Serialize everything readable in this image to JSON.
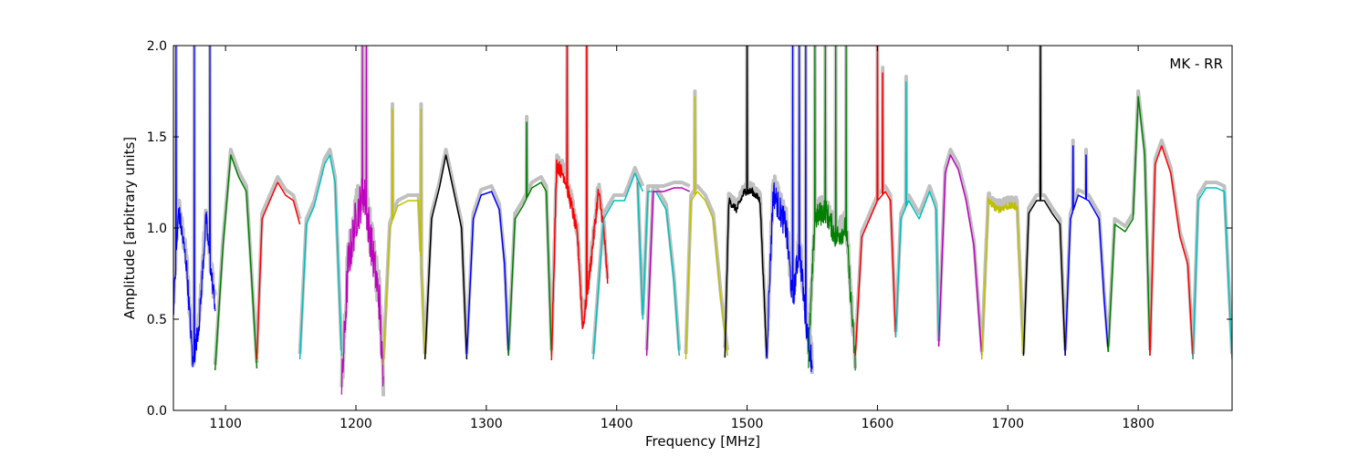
{
  "chart_data": {
    "type": "line",
    "title": "",
    "annotation": "MK - RR",
    "xlabel": "Frequency [MHz]",
    "ylabel": "Amplitude [arbitrary units]",
    "xlim": [
      1060,
      1872
    ],
    "ylim": [
      0.0,
      2.0
    ],
    "xticks": [
      1100,
      1200,
      1300,
      1400,
      1500,
      1600,
      1700,
      1800
    ],
    "yticks": [
      0.0,
      0.5,
      1.0,
      1.5,
      2.0
    ],
    "xtick_labels": [
      "1100",
      "1200",
      "1300",
      "1400",
      "1500",
      "1600",
      "1700",
      "1800"
    ],
    "ytick_labels": [
      "0.0",
      "0.5",
      "1.0",
      "1.5",
      "2.0"
    ],
    "grid": false,
    "background_color": "#c0c0c0",
    "subbands": [
      {
        "start": 1060,
        "end": 1092,
        "color": "#0000ff",
        "noise": 0.06,
        "spikes": [
          [
            1062,
            2.0
          ],
          [
            1076,
            2.0
          ],
          [
            1088,
            2.0
          ]
        ],
        "points": [
          [
            1060,
            0.55
          ],
          [
            1064,
            1.1
          ],
          [
            1070,
            0.8
          ],
          [
            1075,
            0.25
          ],
          [
            1080,
            0.5
          ],
          [
            1085,
            1.05
          ],
          [
            1089,
            0.75
          ],
          [
            1092,
            0.58
          ]
        ]
      },
      {
        "start": 1092,
        "end": 1124,
        "color": "#008000",
        "points": [
          [
            1092,
            0.22
          ],
          [
            1098,
            0.9
          ],
          [
            1104,
            1.4
          ],
          [
            1110,
            1.28
          ],
          [
            1116,
            1.2
          ],
          [
            1121,
            0.6
          ],
          [
            1124,
            0.23
          ]
        ]
      },
      {
        "start": 1124,
        "end": 1157,
        "color": "#ff0000",
        "points": [
          [
            1124,
            0.28
          ],
          [
            1128,
            1.05
          ],
          [
            1134,
            1.15
          ],
          [
            1140,
            1.25
          ],
          [
            1146,
            1.18
          ],
          [
            1152,
            1.15
          ],
          [
            1157,
            1.02
          ]
        ]
      },
      {
        "start": 1157,
        "end": 1189,
        "color": "#00bfbf",
        "points": [
          [
            1157,
            0.28
          ],
          [
            1162,
            1.02
          ],
          [
            1168,
            1.12
          ],
          [
            1176,
            1.35
          ],
          [
            1180,
            1.4
          ],
          [
            1184,
            1.25
          ],
          [
            1189,
            0.3
          ]
        ]
      },
      {
        "start": 1189,
        "end": 1221,
        "color": "#bf00bf",
        "noise": 0.12,
        "spikes": [
          [
            1205,
            2.0
          ],
          [
            1208,
            2.0
          ]
        ],
        "points": [
          [
            1189,
            0.1
          ],
          [
            1194,
            0.8
          ],
          [
            1200,
            1.05
          ],
          [
            1206,
            1.2
          ],
          [
            1212,
            0.9
          ],
          [
            1218,
            0.6
          ],
          [
            1221,
            0.12
          ]
        ]
      },
      {
        "start": 1221,
        "end": 1253,
        "color": "#bfbf00",
        "spikes": [
          [
            1228,
            1.65
          ],
          [
            1250,
            1.65
          ]
        ],
        "points": [
          [
            1221,
            0.25
          ],
          [
            1226,
            1.0
          ],
          [
            1232,
            1.12
          ],
          [
            1240,
            1.15
          ],
          [
            1248,
            1.15
          ],
          [
            1253,
            0.28
          ]
        ]
      },
      {
        "start": 1253,
        "end": 1285,
        "color": "#000000",
        "points": [
          [
            1253,
            0.28
          ],
          [
            1258,
            1.05
          ],
          [
            1264,
            1.22
          ],
          [
            1269,
            1.4
          ],
          [
            1275,
            1.2
          ],
          [
            1281,
            1.0
          ],
          [
            1285,
            0.28
          ]
        ]
      },
      {
        "start": 1285,
        "end": 1317,
        "color": "#0000ff",
        "points": [
          [
            1285,
            0.3
          ],
          [
            1290,
            1.05
          ],
          [
            1296,
            1.18
          ],
          [
            1304,
            1.2
          ],
          [
            1310,
            1.1
          ],
          [
            1314,
            0.8
          ],
          [
            1317,
            0.3
          ]
        ]
      },
      {
        "start": 1317,
        "end": 1350,
        "color": "#008000",
        "spikes": [
          [
            1331,
            1.58
          ]
        ],
        "points": [
          [
            1317,
            0.3
          ],
          [
            1322,
            1.05
          ],
          [
            1328,
            1.12
          ],
          [
            1335,
            1.22
          ],
          [
            1342,
            1.25
          ],
          [
            1346,
            1.2
          ],
          [
            1350,
            0.3
          ]
        ]
      },
      {
        "start": 1350,
        "end": 1393,
        "color": "#ff0000",
        "noise": 0.04,
        "spikes": [
          [
            1362,
            2.0
          ],
          [
            1377,
            2.0
          ]
        ],
        "points": [
          [
            1350,
            0.3
          ],
          [
            1354,
            1.35
          ],
          [
            1360,
            1.28
          ],
          [
            1366,
            1.1
          ],
          [
            1370,
            0.95
          ],
          [
            1374,
            0.45
          ],
          [
            1380,
            0.8
          ],
          [
            1386,
            1.2
          ],
          [
            1390,
            1.0
          ],
          [
            1393,
            0.7
          ]
        ]
      },
      {
        "start": 1382,
        "end": 1420,
        "color": "#00bfbf",
        "points": [
          [
            1382,
            0.28
          ],
          [
            1390,
            1.05
          ],
          [
            1398,
            1.15
          ],
          [
            1406,
            1.15
          ],
          [
            1414,
            1.3
          ],
          [
            1420,
            1.2
          ]
        ]
      },
      {
        "start": 1416,
        "end": 1448,
        "color": "#00bfbf",
        "points": [
          [
            1416,
            1.25
          ],
          [
            1420,
            0.5
          ],
          [
            1424,
            1.2
          ],
          [
            1430,
            1.2
          ],
          [
            1438,
            1.1
          ],
          [
            1444,
            0.7
          ],
          [
            1448,
            0.3
          ]
        ]
      },
      {
        "start": 1423,
        "end": 1456,
        "color": "#bf00bf",
        "points": [
          [
            1423,
            0.3
          ],
          [
            1428,
            1.2
          ],
          [
            1436,
            1.2
          ],
          [
            1444,
            1.22
          ],
          [
            1450,
            1.22
          ],
          [
            1456,
            1.2
          ]
        ]
      },
      {
        "start": 1453,
        "end": 1485,
        "color": "#bfbf00",
        "spikes": [
          [
            1460,
            1.72
          ]
        ],
        "points": [
          [
            1453,
            0.28
          ],
          [
            1457,
            1.15
          ],
          [
            1462,
            1.2
          ],
          [
            1468,
            1.15
          ],
          [
            1474,
            1.05
          ],
          [
            1480,
            0.6
          ],
          [
            1485,
            0.3
          ]
        ]
      },
      {
        "start": 1483,
        "end": 1515,
        "color": "#000000",
        "noise": 0.02,
        "spikes": [
          [
            1500,
            2.0
          ]
        ],
        "points": [
          [
            1483,
            0.3
          ],
          [
            1486,
            1.15
          ],
          [
            1492,
            1.1
          ],
          [
            1498,
            1.2
          ],
          [
            1504,
            1.2
          ],
          [
            1510,
            1.15
          ],
          [
            1515,
            0.3
          ]
        ]
      },
      {
        "start": 1515,
        "end": 1550,
        "color": "#0000ff",
        "noise": 0.08,
        "spikes": [
          [
            1535,
            2.0
          ],
          [
            1540,
            2.0
          ],
          [
            1545,
            2.0
          ]
        ],
        "points": [
          [
            1515,
            0.3
          ],
          [
            1520,
            1.2
          ],
          [
            1525,
            1.1
          ],
          [
            1530,
            1.0
          ],
          [
            1535,
            0.6
          ],
          [
            1540,
            0.9
          ],
          [
            1545,
            0.5
          ],
          [
            1550,
            0.25
          ]
        ]
      },
      {
        "start": 1547,
        "end": 1583,
        "color": "#008000",
        "noise": 0.07,
        "spikes": [
          [
            1552,
            2.0
          ],
          [
            1560,
            2.0
          ],
          [
            1568,
            2.0
          ],
          [
            1576,
            2.0
          ]
        ],
        "points": [
          [
            1547,
            0.28
          ],
          [
            1552,
            1.05
          ],
          [
            1560,
            1.1
          ],
          [
            1568,
            0.95
          ],
          [
            1576,
            1.0
          ],
          [
            1583,
            0.25
          ]
        ]
      },
      {
        "start": 1583,
        "end": 1614,
        "color": "#ff0000",
        "spikes": [
          [
            1600,
            2.0
          ],
          [
            1604,
            1.85
          ]
        ],
        "points": [
          [
            1583,
            0.3
          ],
          [
            1588,
            0.95
          ],
          [
            1594,
            1.05
          ],
          [
            1600,
            1.15
          ],
          [
            1606,
            1.2
          ],
          [
            1610,
            1.15
          ],
          [
            1614,
            0.4
          ]
        ]
      },
      {
        "start": 1614,
        "end": 1647,
        "color": "#00bfbf",
        "spikes": [
          [
            1622,
            1.8
          ]
        ],
        "points": [
          [
            1614,
            0.4
          ],
          [
            1618,
            1.05
          ],
          [
            1624,
            1.15
          ],
          [
            1632,
            1.05
          ],
          [
            1640,
            1.2
          ],
          [
            1645,
            1.1
          ],
          [
            1647,
            0.35
          ]
        ]
      },
      {
        "start": 1647,
        "end": 1680,
        "color": "#bf00bf",
        "points": [
          [
            1647,
            0.35
          ],
          [
            1652,
            1.3
          ],
          [
            1656,
            1.4
          ],
          [
            1662,
            1.32
          ],
          [
            1668,
            1.15
          ],
          [
            1674,
            0.9
          ],
          [
            1680,
            0.3
          ]
        ]
      },
      {
        "start": 1680,
        "end": 1712,
        "color": "#bfbf00",
        "noise": 0.02,
        "points": [
          [
            1680,
            0.28
          ],
          [
            1685,
            1.15
          ],
          [
            1692,
            1.1
          ],
          [
            1700,
            1.12
          ],
          [
            1707,
            1.12
          ],
          [
            1712,
            0.3
          ]
        ]
      },
      {
        "start": 1712,
        "end": 1744,
        "color": "#000000",
        "spikes": [
          [
            1725,
            2.0
          ]
        ],
        "points": [
          [
            1712,
            0.3
          ],
          [
            1716,
            1.08
          ],
          [
            1722,
            1.15
          ],
          [
            1728,
            1.15
          ],
          [
            1734,
            1.08
          ],
          [
            1740,
            1.02
          ],
          [
            1744,
            0.3
          ]
        ]
      },
      {
        "start": 1744,
        "end": 1777,
        "color": "#0000ff",
        "spikes": [
          [
            1750,
            1.45
          ],
          [
            1760,
            1.4
          ]
        ],
        "points": [
          [
            1744,
            0.3
          ],
          [
            1748,
            1.05
          ],
          [
            1754,
            1.18
          ],
          [
            1762,
            1.15
          ],
          [
            1770,
            1.05
          ],
          [
            1774,
            0.6
          ],
          [
            1777,
            0.32
          ]
        ]
      },
      {
        "start": 1777,
        "end": 1809,
        "color": "#008000",
        "points": [
          [
            1777,
            0.32
          ],
          [
            1782,
            1.02
          ],
          [
            1790,
            0.98
          ],
          [
            1796,
            1.05
          ],
          [
            1800,
            1.72
          ],
          [
            1805,
            1.4
          ],
          [
            1809,
            0.3
          ]
        ]
      },
      {
        "start": 1809,
        "end": 1842,
        "color": "#ff0000",
        "points": [
          [
            1809,
            0.3
          ],
          [
            1813,
            1.35
          ],
          [
            1818,
            1.45
          ],
          [
            1825,
            1.3
          ],
          [
            1832,
            0.95
          ],
          [
            1838,
            0.8
          ],
          [
            1842,
            0.28
          ]
        ]
      },
      {
        "start": 1842,
        "end": 1872,
        "color": "#00bfbf",
        "points": [
          [
            1842,
            0.28
          ],
          [
            1846,
            1.15
          ],
          [
            1852,
            1.22
          ],
          [
            1860,
            1.22
          ],
          [
            1866,
            1.2
          ],
          [
            1872,
            0.28
          ]
        ]
      }
    ]
  }
}
